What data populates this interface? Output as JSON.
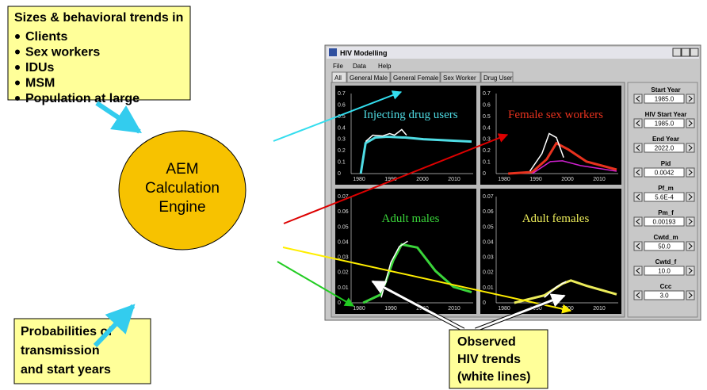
{
  "inputs_box": {
    "heading": "Sizes & behavioral trends in",
    "items": [
      "Clients",
      "Sex workers",
      "IDUs",
      "MSM",
      "Population at large"
    ]
  },
  "engine": {
    "lines": [
      "AEM",
      "Calculation",
      "Engine"
    ]
  },
  "probabilities_box": {
    "lines": [
      "Probabilities of",
      "transmission",
      "and start years"
    ]
  },
  "observed_box": {
    "lines": [
      "Observed",
      "HIV trends",
      "(white lines)"
    ]
  },
  "window": {
    "title": "HIV Modelling",
    "menu": [
      "File",
      "Data",
      "Help"
    ],
    "tabs": [
      "All",
      "General Male",
      "General Female",
      "Sex Worker",
      "Drug User"
    ],
    "x_ticks": [
      "1980",
      "1990",
      "2000",
      "2010"
    ],
    "plots": [
      {
        "title": "Injecting drug users",
        "color": "#4fdce4",
        "yticks": [
          0.7,
          0.6,
          0.5,
          0.4,
          0.3,
          0.2,
          0.1,
          0
        ]
      },
      {
        "title": "Female sex workers",
        "color": "#e8321e",
        "yticks": [
          0.7,
          0.6,
          0.5,
          0.4,
          0.3,
          0.2,
          0.1,
          0
        ]
      },
      {
        "title": "Adult males",
        "color": "#3ad43a",
        "yticks": [
          0.07,
          0.06,
          0.05,
          0.04,
          0.03,
          0.02,
          0.01,
          0
        ]
      },
      {
        "title": "Adult females",
        "color": "#ecec5a",
        "yticks": [
          0.07,
          0.06,
          0.05,
          0.04,
          0.03,
          0.02,
          0.01,
          0
        ]
      }
    ],
    "params": [
      {
        "label": "Start Year",
        "value": "1985.0"
      },
      {
        "label": "HIV Start Year",
        "value": "1985.0"
      },
      {
        "label": "End Year",
        "value": "2022.0"
      },
      {
        "label": "Pid",
        "value": "0.0042"
      },
      {
        "label": "Pf_m",
        "value": "5.6E-4"
      },
      {
        "label": "Pm_f",
        "value": "0.00193"
      },
      {
        "label": "Cwtd_m",
        "value": "50.0"
      },
      {
        "label": "Cwtd_f",
        "value": "10.0"
      },
      {
        "label": "Ccc",
        "value": "3.0"
      }
    ]
  }
}
